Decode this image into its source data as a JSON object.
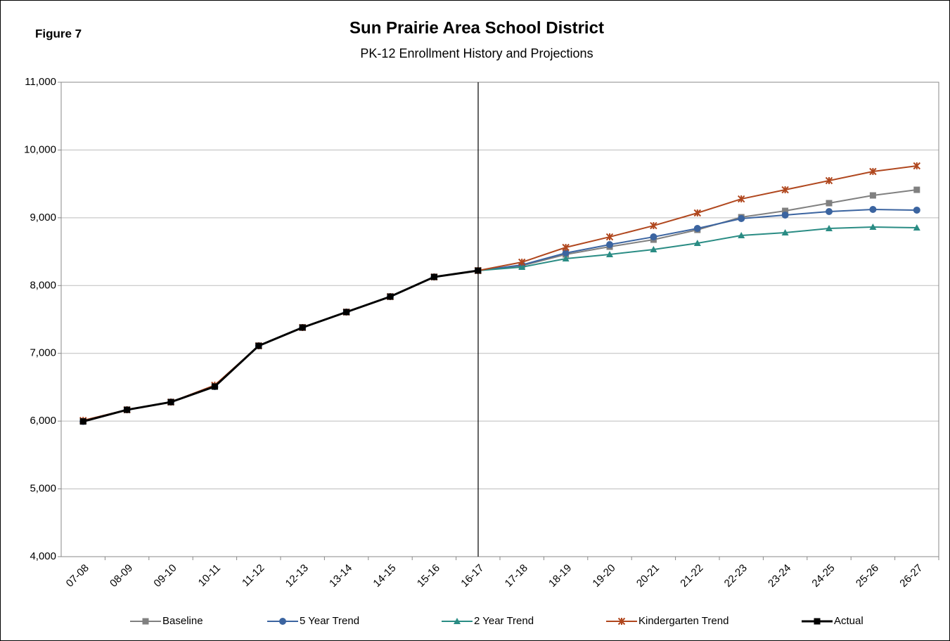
{
  "chart_data": {
    "type": "line",
    "label": "Figure  7",
    "title": "Sun Prairie Area School District",
    "subtitle": "PK-12 Enrollment History and Projections",
    "categories": [
      "07-08",
      "08-09",
      "09-10",
      "10-11",
      "11-12",
      "12-13",
      "13-14",
      "14-15",
      "15-16",
      "16-17",
      "17-18",
      "18-19",
      "19-20",
      "20-21",
      "21-22",
      "22-23",
      "23-24",
      "24-25",
      "25-26",
      "26-27"
    ],
    "ylim": [
      4000,
      11000
    ],
    "yticks": [
      {
        "value": 4000,
        "label": "4,000"
      },
      {
        "value": 5000,
        "label": "5,000"
      },
      {
        "value": 6000,
        "label": "6,000"
      },
      {
        "value": 7000,
        "label": "7,000"
      },
      {
        "value": 8000,
        "label": "8,000"
      },
      {
        "value": 9000,
        "label": "9,000"
      },
      {
        "value": 10000,
        "label": "10,000"
      },
      {
        "value": 11000,
        "label": "11,000"
      }
    ],
    "grid": true,
    "legend": "bottom",
    "series": [
      {
        "name": "Baseline",
        "color": "#808080",
        "marker": "square",
        "values": [
          5995,
          6167,
          6281,
          6510,
          7111,
          7381,
          7609,
          7837,
          8127,
          8221,
          8293,
          8459,
          8573,
          8677,
          8822,
          9009,
          9102,
          9216,
          9330,
          9413
        ]
      },
      {
        "name": "5 Year Trend",
        "color": "#3b64a0",
        "marker": "circle",
        "values": [
          5995,
          6167,
          6281,
          6510,
          7111,
          7381,
          7609,
          7837,
          8127,
          8221,
          8304,
          8480,
          8604,
          8718,
          8843,
          8988,
          9040,
          9092,
          9123,
          9113
        ]
      },
      {
        "name": "2 Year Trend",
        "color": "#2a8c84",
        "marker": "triangle",
        "values": [
          5995,
          6167,
          6281,
          6510,
          7111,
          7381,
          7609,
          7837,
          8127,
          8221,
          8273,
          8397,
          8459,
          8532,
          8625,
          8739,
          8781,
          8843,
          8864,
          8853
        ]
      },
      {
        "name": "Kindergarten Trend",
        "color": "#b0471e",
        "marker": "star",
        "values": [
          6010,
          6167,
          6281,
          6530,
          7111,
          7381,
          7609,
          7837,
          8127,
          8221,
          8345,
          8563,
          8718,
          8884,
          9071,
          9278,
          9413,
          9548,
          9683,
          9766
        ]
      },
      {
        "name": "Actual",
        "color": "#000000",
        "marker": "square",
        "width": 3,
        "values": [
          5995,
          6167,
          6281,
          6510,
          7111,
          7381,
          7609,
          7837,
          8127,
          8221,
          null,
          null,
          null,
          null,
          null,
          null,
          null,
          null,
          null,
          null
        ]
      }
    ]
  }
}
